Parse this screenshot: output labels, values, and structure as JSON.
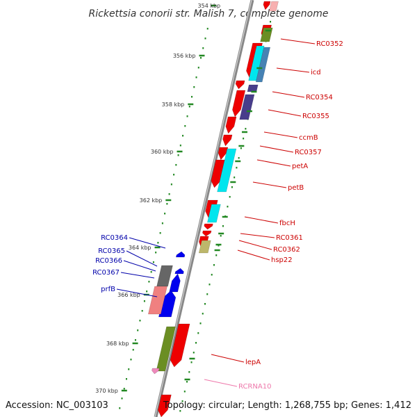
{
  "title": "Rickettsia conorii str. Malish 7, complete genome",
  "footer": {
    "accession": "Accession: NC_003103",
    "topology": "Topology: circular; Length: 1,268,755 bp; Genes: 1,412"
  },
  "scale": {
    "unit": "kbp",
    "ticks": [
      "354 kbp",
      "356 kbp",
      "358 kbp",
      "360 kbp",
      "362 kbp",
      "364 kbp",
      "366 kbp",
      "368 kbp",
      "370 kbp"
    ]
  },
  "colors": {
    "backbone": "#888888",
    "forward_gene": "#ee0000",
    "reverse_gene": "#0000ee",
    "rna": "#ee88bb",
    "forward_label": "#cc0000",
    "reverse_label": "#0000aa",
    "rna_label": "#ee77aa",
    "tick": "#228822",
    "cog_olive": "#6b8e23",
    "cog_cyan": "#00e5ee",
    "cog_steelblue": "#4682b4",
    "cog_slate": "#483d8b",
    "cog_khaki": "#bdb76b",
    "cog_gray": "#666666",
    "cog_salmon": "#f08080"
  },
  "gene_labels": {
    "forward": [
      "RC0352",
      "icd",
      "RC0354",
      "RC0355",
      "ccmB",
      "RC0357",
      "petA",
      "petB",
      "fbcH",
      "RC0361",
      "RC0362",
      "hsp22",
      "lepA"
    ],
    "reverse": [
      "RC0364",
      "RC0365",
      "RC0366",
      "RC0367",
      "prfB"
    ],
    "rna": [
      "RCRNA10"
    ]
  }
}
